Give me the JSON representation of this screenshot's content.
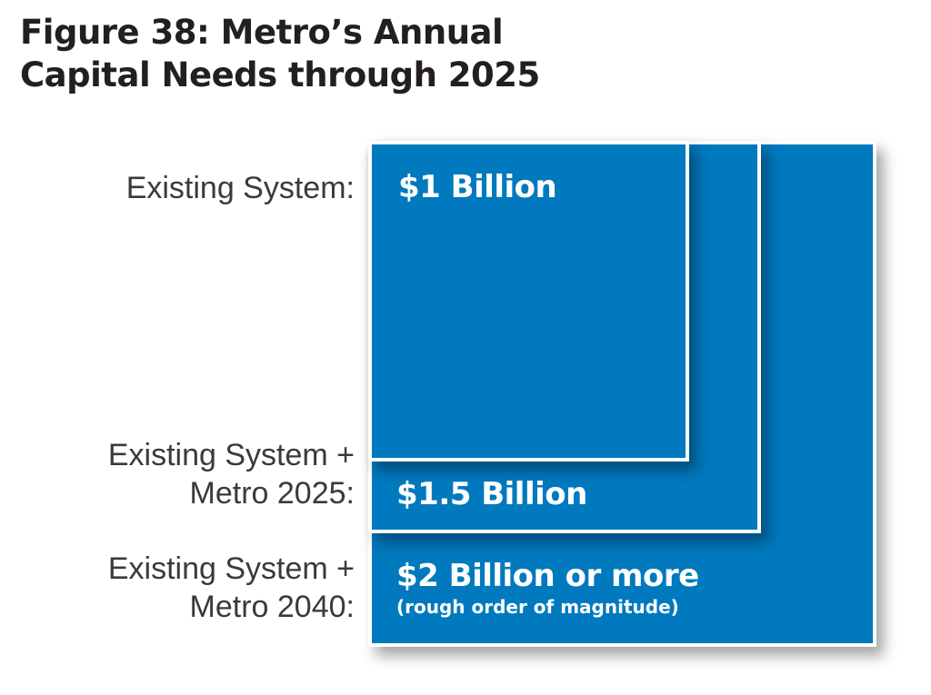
{
  "title_line1": "Figure 38: Metro’s Annual",
  "title_line2": "Capital Needs through 2025",
  "colors": {
    "square_fill": "#0079be",
    "square_border": "#ffffff",
    "title": "#231f20"
  },
  "chart_data": {
    "type": "nested-squares",
    "title": "Figure 38: Metro’s Annual Capital Needs through 2025",
    "unit": "billion USD per year",
    "items": [
      {
        "label_line1": "Existing System:",
        "label_line2": "",
        "value": 1,
        "value_label": "$1 Billion",
        "note": ""
      },
      {
        "label_line1": "Existing System +",
        "label_line2": "Metro 2025:",
        "value": 1.5,
        "value_label": "$1.5 Billion",
        "note": ""
      },
      {
        "label_line1": "Existing System +",
        "label_line2": "Metro 2040:",
        "value": 2,
        "value_label": "$2 Billion or more",
        "note": "(rough order of magnitude)"
      }
    ]
  }
}
